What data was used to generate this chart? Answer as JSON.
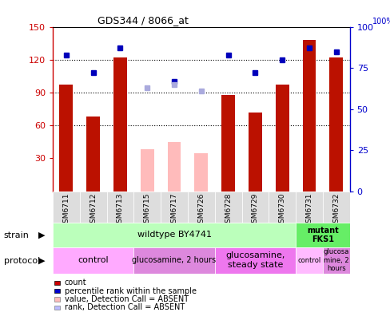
{
  "title": "GDS344 / 8066_at",
  "samples": [
    "GSM6711",
    "GSM6712",
    "GSM6713",
    "GSM6715",
    "GSM6717",
    "GSM6726",
    "GSM6728",
    "GSM6729",
    "GSM6730",
    "GSM6731",
    "GSM6732"
  ],
  "red_values": [
    97,
    68,
    122,
    null,
    45,
    null,
    88,
    72,
    97,
    138,
    122
  ],
  "blue_values": [
    83,
    72,
    87,
    null,
    67,
    null,
    83,
    72,
    80,
    87,
    85
  ],
  "pink_values": [
    null,
    null,
    null,
    38,
    45,
    35,
    null,
    null,
    null,
    null,
    null
  ],
  "lavender_values": [
    null,
    null,
    null,
    63,
    65,
    61,
    null,
    null,
    null,
    null,
    null
  ],
  "ylim_left": [
    0,
    150
  ],
  "ylim_right": [
    0,
    100
  ],
  "yticks_left": [
    30,
    60,
    90,
    120,
    150
  ],
  "yticks_right": [
    0,
    25,
    50,
    75,
    100
  ],
  "left_axis_color": "#cc0000",
  "right_axis_color": "#0000cc",
  "strain_wildtype": {
    "label": "wildtype BY4741",
    "cols": [
      0,
      1,
      2,
      3,
      4,
      5,
      6,
      7,
      8
    ],
    "color": "#bbffbb"
  },
  "strain_mutant": {
    "label": "mutant\nFKS1",
    "cols": [
      9,
      10
    ],
    "color": "#66ee66"
  },
  "protocol_groups": [
    {
      "label": "control",
      "cols": [
        0,
        1,
        2
      ],
      "color": "#ffaaff",
      "fontsize": 8
    },
    {
      "label": "glucosamine, 2 hours",
      "cols": [
        3,
        4,
        5
      ],
      "color": "#dd88dd",
      "fontsize": 7
    },
    {
      "label": "glucosamine,\nsteady state",
      "cols": [
        6,
        7,
        8
      ],
      "color": "#ee77ee",
      "fontsize": 8
    },
    {
      "label": "control",
      "cols": [
        9
      ],
      "color": "#ffbbff",
      "fontsize": 6
    },
    {
      "label": "glucosa\nmine, 2\nhours",
      "cols": [
        10
      ],
      "color": "#dd88dd",
      "fontsize": 6
    }
  ],
  "legend": [
    {
      "color": "#cc0000",
      "label": "count"
    },
    {
      "color": "#0000cc",
      "label": "percentile rank within the sample"
    },
    {
      "color": "#ffbbbb",
      "label": "value, Detection Call = ABSENT"
    },
    {
      "color": "#bbbbff",
      "label": "rank, Detection Call = ABSENT"
    }
  ]
}
